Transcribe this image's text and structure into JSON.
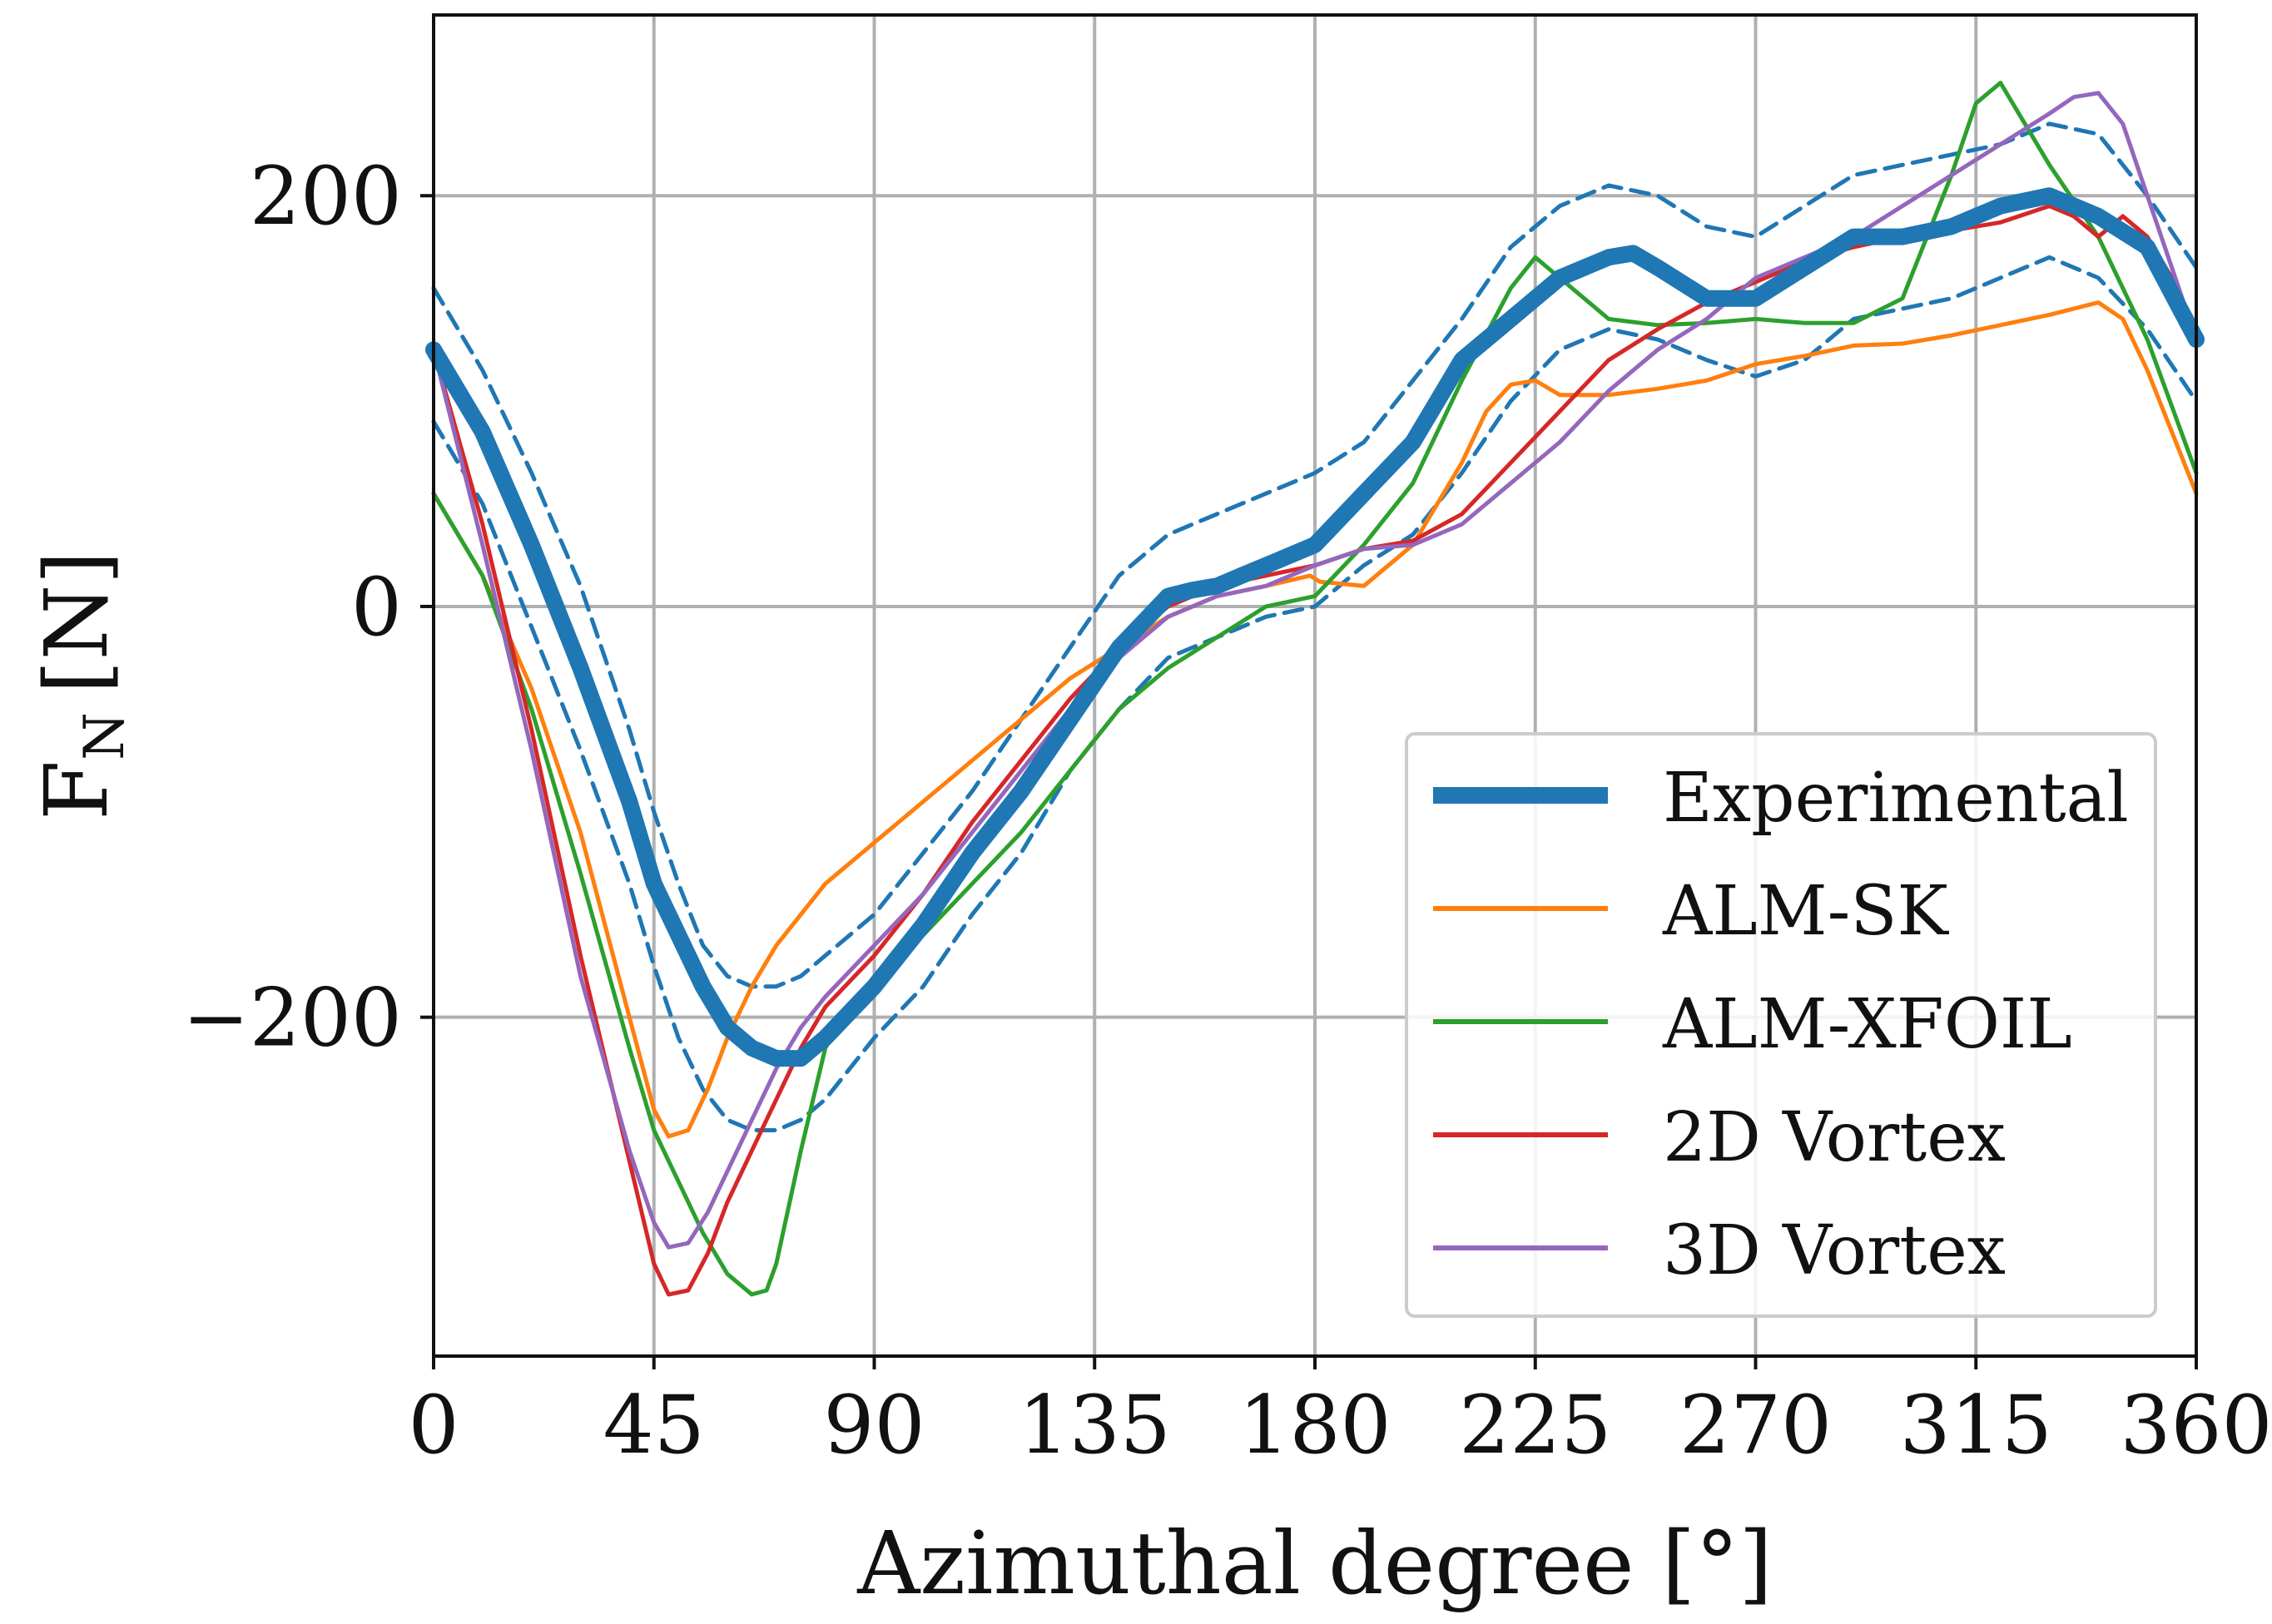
{
  "chart_data": {
    "type": "line",
    "title": "",
    "xlabel": "Azimuthal degree [°]",
    "ylabel_main": "F",
    "ylabel_sub": "N",
    "ylabel_unit": "[N]",
    "xlim": [
      0,
      360
    ],
    "ylim": [
      -365,
      288
    ],
    "xticks": [
      0,
      45,
      90,
      135,
      180,
      225,
      270,
      315,
      360
    ],
    "xtick_labels": [
      "0",
      "45",
      "90",
      "135",
      "180",
      "225",
      "270",
      "315",
      "360"
    ],
    "yticks": [
      -200,
      0,
      200
    ],
    "ytick_labels": [
      "−200",
      "0",
      "200"
    ],
    "grid": true,
    "legend_position": "lower-right",
    "series": [
      {
        "name": "Experimental",
        "color": "#1f77b4",
        "style": "thick-solid",
        "x": [
          0,
          10,
          20,
          30,
          40,
          45,
          50,
          55,
          60,
          65,
          70,
          75,
          80,
          90,
          100,
          110,
          120,
          130,
          140,
          150,
          155,
          160,
          165,
          170,
          180,
          190,
          200,
          210,
          220,
          230,
          240,
          245,
          250,
          260,
          270,
          280,
          290,
          300,
          310,
          320,
          330,
          340,
          350,
          360
        ],
        "values": [
          125,
          85,
          30,
          -30,
          -95,
          -135,
          -160,
          -185,
          -205,
          -215,
          -220,
          -220,
          -210,
          -185,
          -155,
          -120,
          -90,
          -55,
          -20,
          5,
          8,
          10,
          15,
          20,
          30,
          55,
          80,
          120,
          140,
          160,
          170,
          172,
          165,
          150,
          150,
          165,
          180,
          180,
          185,
          195,
          200,
          190,
          175,
          130
        ]
      },
      {
        "name": "Experimental upper bound",
        "color": "#1f77b4",
        "style": "dashed",
        "legend": false,
        "x": [
          0,
          10,
          20,
          30,
          40,
          45,
          50,
          55,
          60,
          65,
          70,
          75,
          80,
          90,
          100,
          110,
          120,
          130,
          140,
          150,
          155,
          160,
          170,
          180,
          190,
          200,
          210,
          220,
          230,
          240,
          250,
          260,
          270,
          280,
          290,
          300,
          310,
          320,
          330,
          340,
          350,
          360
        ],
        "values": [
          155,
          115,
          65,
          10,
          -60,
          -100,
          -135,
          -165,
          -180,
          -185,
          -185,
          -180,
          -170,
          -150,
          -120,
          -90,
          -55,
          -20,
          15,
          35,
          40,
          45,
          55,
          65,
          80,
          110,
          140,
          175,
          195,
          205,
          200,
          185,
          180,
          195,
          210,
          215,
          220,
          225,
          235,
          230,
          200,
          165
        ]
      },
      {
        "name": "Experimental lower bound",
        "color": "#1f77b4",
        "style": "dashed",
        "legend": false,
        "x": [
          0,
          10,
          20,
          30,
          40,
          45,
          50,
          55,
          60,
          65,
          70,
          75,
          80,
          90,
          100,
          110,
          120,
          130,
          140,
          150,
          155,
          160,
          170,
          180,
          190,
          200,
          210,
          220,
          230,
          240,
          250,
          260,
          270,
          280,
          290,
          300,
          310,
          320,
          330,
          340,
          350,
          360
        ],
        "values": [
          90,
          50,
          -10,
          -70,
          -135,
          -175,
          -210,
          -235,
          -250,
          -255,
          -255,
          -250,
          -240,
          -210,
          -185,
          -150,
          -120,
          -80,
          -50,
          -25,
          -20,
          -15,
          -5,
          0,
          20,
          35,
          65,
          100,
          125,
          135,
          130,
          120,
          112,
          120,
          140,
          145,
          150,
          160,
          170,
          160,
          135,
          100
        ]
      },
      {
        "name": "ALM-SK",
        "color": "#ff7f0e",
        "style": "solid",
        "x": [
          0,
          10,
          20,
          30,
          40,
          45,
          48,
          52,
          56,
          60,
          65,
          70,
          80,
          90,
          100,
          110,
          120,
          130,
          140,
          150,
          160,
          170,
          179,
          181,
          190,
          200,
          210,
          215,
          220,
          225,
          230,
          240,
          250,
          260,
          270,
          280,
          290,
          300,
          310,
          320,
          330,
          340,
          345,
          350,
          355,
          360
        ],
        "values": [
          55,
          15,
          -40,
          -110,
          -200,
          -245,
          -258,
          -255,
          -235,
          -210,
          -185,
          -165,
          -135,
          -115,
          -95,
          -75,
          -55,
          -35,
          -20,
          -5,
          5,
          10,
          15,
          12,
          10,
          30,
          70,
          95,
          108,
          110,
          103,
          103,
          106,
          110,
          118,
          122,
          127,
          128,
          132,
          137,
          142,
          148,
          140,
          115,
          85,
          55
        ]
      },
      {
        "name": "ALM-XFOIL",
        "color": "#2ca02c",
        "style": "solid",
        "x": [
          0,
          10,
          20,
          30,
          40,
          45,
          50,
          55,
          60,
          65,
          68,
          70,
          75,
          80,
          85,
          90,
          100,
          110,
          120,
          130,
          140,
          150,
          160,
          170,
          180,
          190,
          200,
          210,
          220,
          225,
          230,
          240,
          250,
          260,
          270,
          280,
          290,
          300,
          310,
          315,
          320,
          325,
          330,
          340,
          350,
          360
        ],
        "values": [
          55,
          15,
          -50,
          -130,
          -215,
          -255,
          -280,
          -305,
          -325,
          -335,
          -333,
          -320,
          -265,
          -215,
          -195,
          -185,
          -160,
          -135,
          -110,
          -80,
          -50,
          -30,
          -15,
          0,
          5,
          30,
          60,
          110,
          155,
          170,
          160,
          140,
          137,
          138,
          140,
          138,
          138,
          150,
          210,
          245,
          255,
          235,
          215,
          180,
          130,
          65
        ]
      },
      {
        "name": "2D Vortex",
        "color": "#d62728",
        "style": "solid",
        "x": [
          0,
          10,
          20,
          30,
          40,
          45,
          48,
          52,
          56,
          60,
          65,
          70,
          75,
          80,
          90,
          100,
          110,
          120,
          130,
          140,
          150,
          160,
          170,
          180,
          190,
          200,
          210,
          220,
          230,
          240,
          250,
          260,
          270,
          280,
          290,
          300,
          310,
          320,
          330,
          335,
          340,
          345,
          350,
          355,
          360
        ],
        "values": [
          125,
          40,
          -60,
          -170,
          -270,
          -320,
          -335,
          -333,
          -315,
          -290,
          -265,
          -240,
          -215,
          -195,
          -170,
          -140,
          -105,
          -75,
          -45,
          -20,
          0,
          10,
          15,
          20,
          28,
          32,
          45,
          70,
          95,
          120,
          135,
          148,
          158,
          168,
          175,
          180,
          183,
          187,
          195,
          190,
          180,
          190,
          180,
          160,
          130
        ]
      },
      {
        "name": "3D Vortex",
        "color": "#9467bd",
        "style": "solid",
        "x": [
          0,
          10,
          20,
          30,
          40,
          45,
          48,
          52,
          56,
          60,
          65,
          70,
          75,
          80,
          90,
          100,
          110,
          120,
          130,
          140,
          150,
          160,
          170,
          180,
          190,
          200,
          210,
          220,
          230,
          240,
          250,
          260,
          270,
          280,
          290,
          300,
          310,
          320,
          330,
          335,
          340,
          345,
          350,
          355,
          360
        ],
        "values": [
          125,
          30,
          -70,
          -180,
          -265,
          -300,
          -312,
          -310,
          -295,
          -275,
          -250,
          -225,
          -205,
          -190,
          -165,
          -140,
          -110,
          -80,
          -50,
          -25,
          -5,
          5,
          10,
          20,
          28,
          30,
          40,
          60,
          80,
          105,
          125,
          140,
          160,
          170,
          180,
          195,
          210,
          225,
          240,
          248,
          250,
          235,
          200,
          165,
          130
        ]
      }
    ]
  },
  "legend": {
    "items": [
      {
        "label": "Experimental",
        "color": "#1f77b4"
      },
      {
        "label": "ALM-SK",
        "color": "#ff7f0e"
      },
      {
        "label": "ALM-XFOIL",
        "color": "#2ca02c"
      },
      {
        "label": "2D Vortex",
        "color": "#d62728"
      },
      {
        "label": "3D Vortex",
        "color": "#9467bd"
      }
    ]
  }
}
